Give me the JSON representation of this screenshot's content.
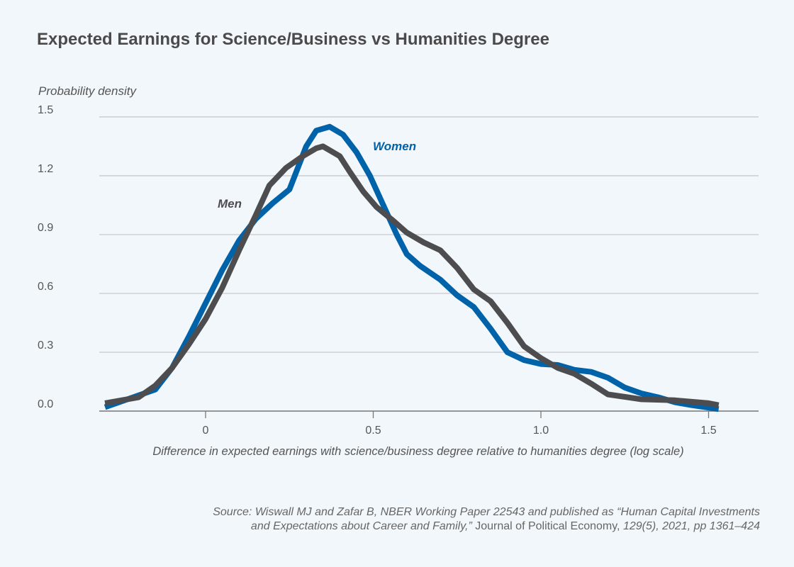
{
  "chart_data": {
    "type": "line",
    "title": "Expected Earnings for Science/Business vs Humanities Degree",
    "ylabel": "Probability density",
    "xlabel": "Difference in expected earnings with science/business degree relative to humanities degree (log scale)",
    "xlim": [
      -0.3,
      1.65
    ],
    "ylim": [
      0,
      1.5
    ],
    "xticks": [
      0,
      0.5,
      1.0,
      1.5
    ],
    "xtick_labels": [
      "0",
      "0.5",
      "1.0",
      "1.5"
    ],
    "yticks": [
      0,
      0.3,
      0.6,
      0.9,
      1.2,
      1.5
    ],
    "ytick_labels": [
      "0.0",
      "0.3",
      "0.6",
      "0.9",
      "1.2",
      "1.5"
    ],
    "grid": "horizontal",
    "series": [
      {
        "name": "Women",
        "color": "#0062a8",
        "x": [
          -0.3,
          -0.2,
          -0.15,
          -0.1,
          -0.05,
          0,
          0.05,
          0.1,
          0.15,
          0.2,
          0.25,
          0.3,
          0.33,
          0.37,
          0.41,
          0.45,
          0.49,
          0.53,
          0.57,
          0.6,
          0.64,
          0.7,
          0.75,
          0.8,
          0.85,
          0.9,
          0.95,
          1.0,
          1.05,
          1.1,
          1.15,
          1.2,
          1.25,
          1.3,
          1.35,
          1.4,
          1.45,
          1.53
        ],
        "y": [
          0.02,
          0.08,
          0.11,
          0.22,
          0.38,
          0.55,
          0.72,
          0.87,
          0.98,
          1.06,
          1.13,
          1.35,
          1.43,
          1.45,
          1.41,
          1.32,
          1.2,
          1.05,
          0.9,
          0.8,
          0.74,
          0.67,
          0.59,
          0.53,
          0.42,
          0.3,
          0.26,
          0.24,
          0.235,
          0.21,
          0.2,
          0.17,
          0.12,
          0.09,
          0.07,
          0.045,
          0.03,
          0.01
        ]
      },
      {
        "name": "Men",
        "color": "#4d4d4f",
        "x": [
          -0.3,
          -0.2,
          -0.15,
          -0.1,
          -0.05,
          0,
          0.05,
          0.1,
          0.15,
          0.19,
          0.24,
          0.29,
          0.33,
          0.35,
          0.4,
          0.43,
          0.47,
          0.51,
          0.56,
          0.6,
          0.65,
          0.7,
          0.75,
          0.8,
          0.85,
          0.9,
          0.95,
          1.0,
          1.05,
          1.1,
          1.15,
          1.2,
          1.3,
          1.4,
          1.5,
          1.53
        ],
        "y": [
          0.04,
          0.07,
          0.13,
          0.22,
          0.34,
          0.47,
          0.63,
          0.82,
          1.0,
          1.15,
          1.24,
          1.3,
          1.34,
          1.35,
          1.3,
          1.22,
          1.12,
          1.04,
          0.97,
          0.91,
          0.86,
          0.82,
          0.73,
          0.62,
          0.56,
          0.45,
          0.33,
          0.27,
          0.22,
          0.19,
          0.14,
          0.085,
          0.06,
          0.055,
          0.04,
          0.03
        ]
      }
    ]
  },
  "source": {
    "prefix": "Source: Wiswall MJ and Zafar B, NBER Working Paper 22543 and published as “Human Capital Investments",
    "line2_italic": "and Expectations about Career and Family,”",
    "journal": " Journal of Political Economy, ",
    "details": "129(5), 2021, pp 1361–424"
  }
}
